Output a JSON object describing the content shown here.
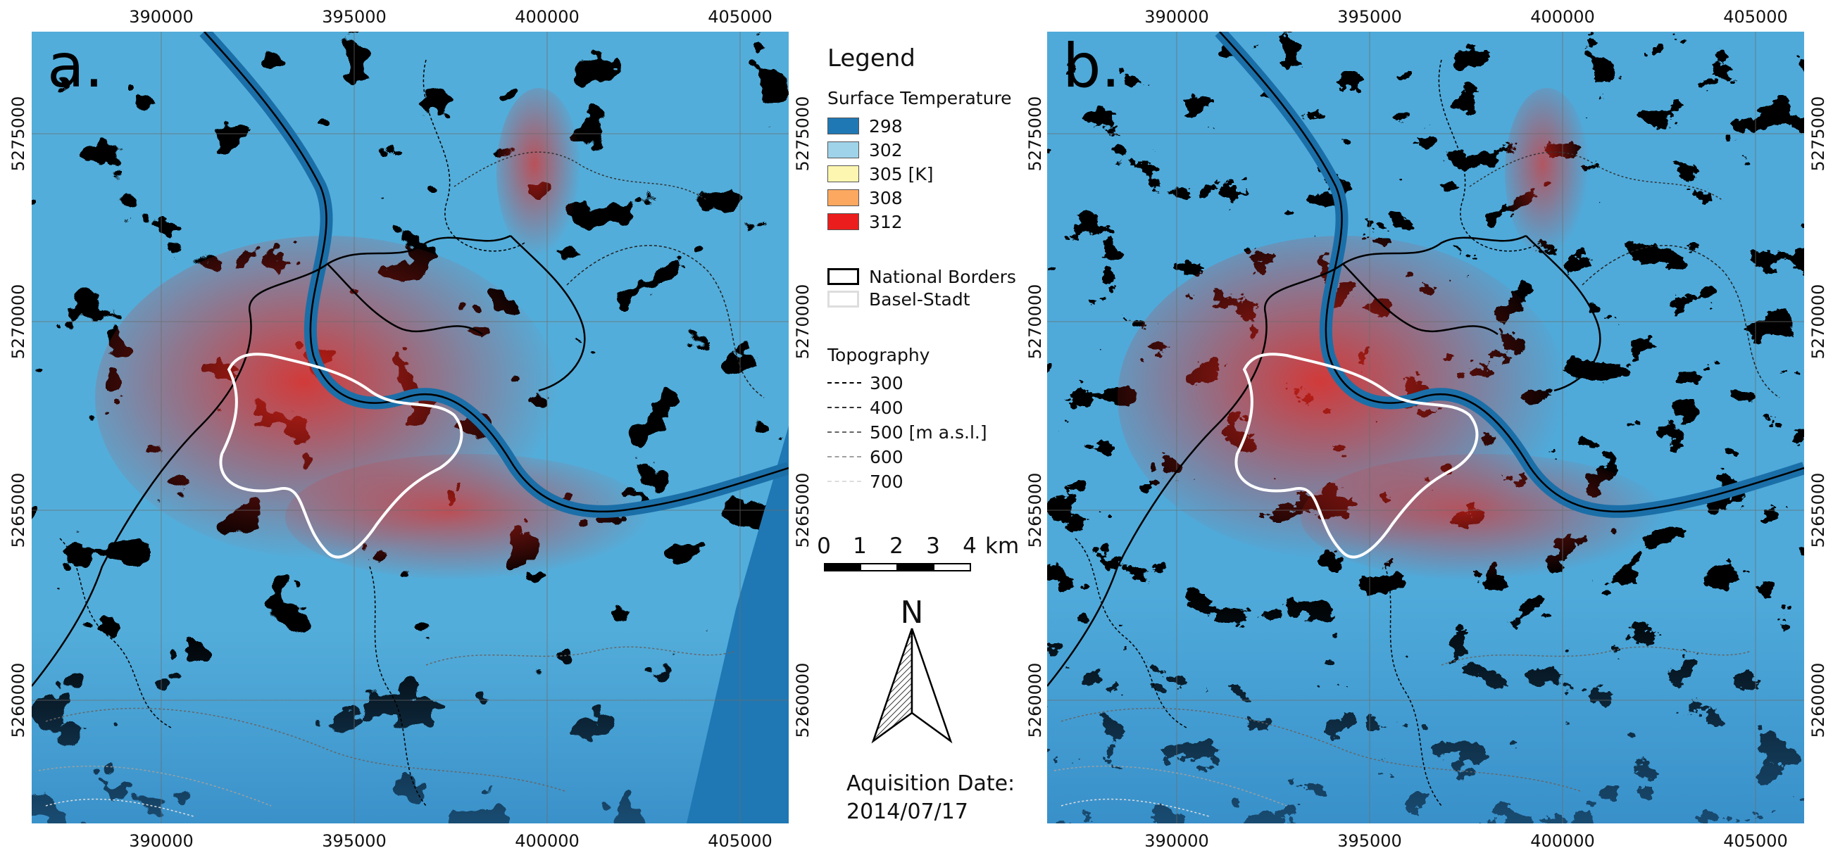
{
  "panels": [
    {
      "letter": "a."
    },
    {
      "letter": "b."
    }
  ],
  "axes": {
    "x_ticks": [
      "390000",
      "395000",
      "400000",
      "405000"
    ],
    "y_ticks": [
      "5275000",
      "5270000",
      "5265000",
      "5260000"
    ]
  },
  "legend": {
    "title": "Legend",
    "surface_temperature": {
      "heading": "Surface Temperature",
      "classes": [
        {
          "label": "298",
          "color": "#1f78b4"
        },
        {
          "label": "302",
          "color": "#9fd3ea"
        },
        {
          "label": "305 [K]",
          "color": "#fdf6b0"
        },
        {
          "label": "308",
          "color": "#fca860"
        },
        {
          "label": "312",
          "color": "#ec1d1d"
        }
      ]
    },
    "borders": [
      {
        "label": "National Borders",
        "color": "#000000"
      },
      {
        "label": "Basel-Stadt",
        "color": "#ffffff"
      }
    ],
    "topography": {
      "heading": "Topography",
      "levels": [
        {
          "label": "300",
          "color": "#000000"
        },
        {
          "label": "400",
          "color": "#333333"
        },
        {
          "label": "500 [m a.s.l.]",
          "color": "#666666"
        },
        {
          "label": "600",
          "color": "#a0a0a0"
        },
        {
          "label": "700",
          "color": "#dddddd"
        }
      ]
    }
  },
  "scale_bar": {
    "labels": [
      "0",
      "1",
      "2",
      "3",
      "4"
    ],
    "unit": "km"
  },
  "north_arrow": {
    "label": "N"
  },
  "acquisition": {
    "label": "Aquisition Date:",
    "date": "2014/07/17"
  },
  "colors": {
    "river": "#1b6fa8",
    "map_background": "#4b9fd0"
  }
}
